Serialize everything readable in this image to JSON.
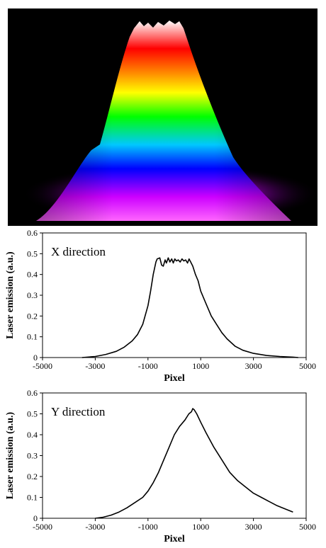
{
  "colors": {
    "image_background": "#000000",
    "profile_gradient": [
      "#ff66ff",
      "#cc00ff",
      "#0000ff",
      "#00c8ff",
      "#00ff00",
      "#ffff00",
      "#ff8800",
      "#ff0000",
      "#ffffff"
    ],
    "line": "#000000"
  },
  "chart_data": [
    {
      "type": "line",
      "annotation": "X direction",
      "xlabel": "Pixel",
      "ylabel": "Laser emission (a.u.)",
      "xlim": [
        -5000,
        5000
      ],
      "ylim": [
        0,
        0.6
      ],
      "xticks": [
        "-5000",
        "-3000",
        "-1000",
        "1000",
        "3000",
        "5000"
      ],
      "yticks": [
        "0",
        "0.1",
        "0.2",
        "0.3",
        "0.4",
        "0.5",
        "0.6"
      ],
      "grid": false,
      "series": [
        {
          "x": [
            -3500,
            -3000,
            -2600,
            -2200,
            -1900,
            -1600,
            -1400,
            -1200,
            -1000,
            -900,
            -800,
            -700,
            -650,
            -550,
            -480,
            -420,
            -350,
            -300,
            -230,
            -170,
            -100,
            -40,
            20,
            80,
            150,
            220,
            290,
            360,
            430,
            500,
            560,
            620,
            700,
            800,
            900,
            1000,
            1200,
            1400,
            1600,
            1800,
            2000,
            2300,
            2600,
            3000,
            3500,
            4000,
            4500,
            4700
          ],
          "y": [
            0.0,
            0.005,
            0.015,
            0.03,
            0.05,
            0.08,
            0.11,
            0.16,
            0.25,
            0.32,
            0.4,
            0.46,
            0.475,
            0.48,
            0.445,
            0.44,
            0.47,
            0.455,
            0.48,
            0.46,
            0.475,
            0.455,
            0.475,
            0.465,
            0.47,
            0.46,
            0.475,
            0.465,
            0.47,
            0.455,
            0.475,
            0.46,
            0.44,
            0.4,
            0.37,
            0.32,
            0.26,
            0.2,
            0.16,
            0.12,
            0.09,
            0.055,
            0.035,
            0.02,
            0.01,
            0.005,
            0.002,
            0.0
          ]
        }
      ]
    },
    {
      "type": "line",
      "annotation": "Y direction",
      "xlabel": "Pixel",
      "ylabel": "Laser emission (a.u.)",
      "xlim": [
        -5000,
        5000
      ],
      "ylim": [
        0,
        0.6
      ],
      "xticks": [
        "-5000",
        "-3000",
        "-1000",
        "1000",
        "3000",
        "5000"
      ],
      "yticks": [
        "0",
        "0.1",
        "0.2",
        "0.3",
        "0.4",
        "0.5",
        "0.6"
      ],
      "grid": false,
      "series": [
        {
          "x": [
            -3000,
            -2700,
            -2400,
            -2100,
            -1800,
            -1500,
            -1200,
            -1000,
            -800,
            -600,
            -400,
            -200,
            0,
            200,
            400,
            550,
            650,
            700,
            750,
            850,
            1000,
            1200,
            1500,
            1800,
            2100,
            2400,
            2700,
            3000,
            3300,
            3600,
            3900,
            4200,
            4500
          ],
          "y": [
            0.0,
            0.005,
            0.015,
            0.03,
            0.05,
            0.075,
            0.1,
            0.13,
            0.17,
            0.22,
            0.28,
            0.34,
            0.4,
            0.44,
            0.47,
            0.5,
            0.51,
            0.525,
            0.52,
            0.5,
            0.46,
            0.41,
            0.34,
            0.28,
            0.22,
            0.18,
            0.15,
            0.12,
            0.1,
            0.08,
            0.06,
            0.045,
            0.03
          ]
        }
      ]
    }
  ]
}
